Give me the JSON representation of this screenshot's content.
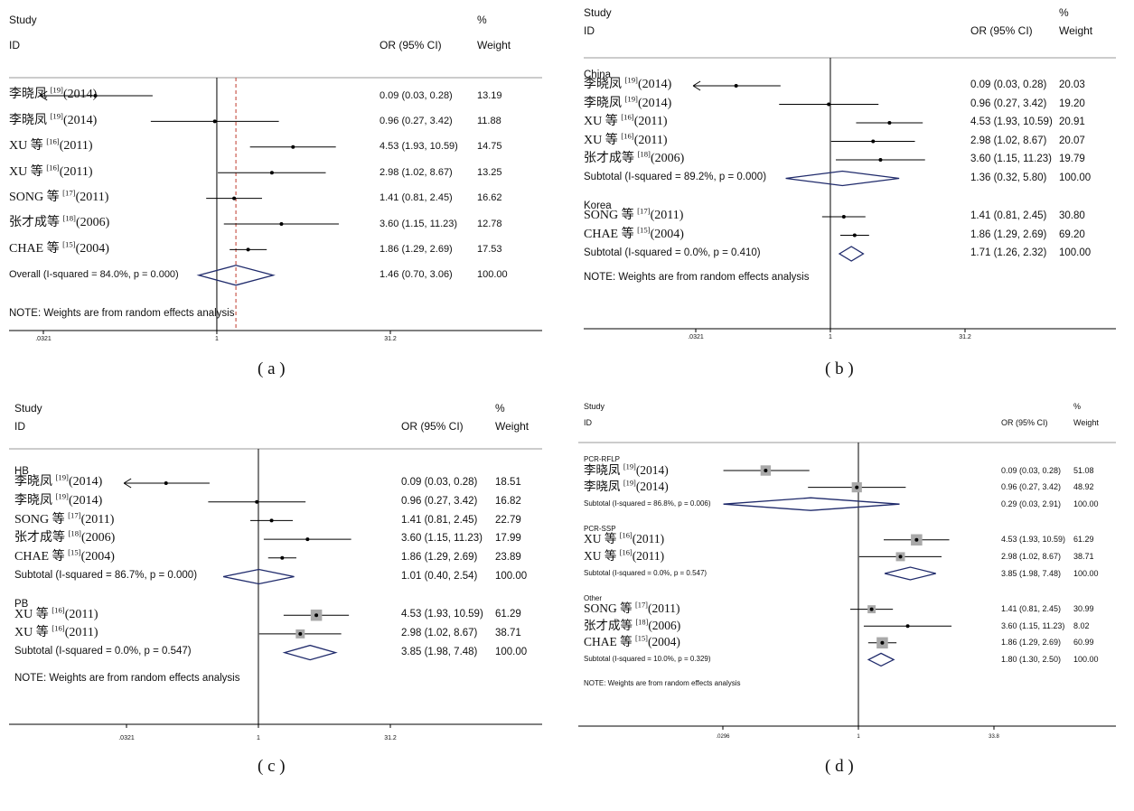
{
  "chart_data": [
    {
      "type": "forest",
      "panel_label": "( a )",
      "header": {
        "study": "Study",
        "id": "ID",
        "estimate": "OR (95% CI)",
        "pct": "%",
        "weight": "Weight"
      },
      "axis": {
        "scale": "log",
        "ticks": [
          ".0321",
          "1",
          "31.2"
        ]
      },
      "reference_line": 1,
      "overall_line": 1.46,
      "groups": [
        {
          "label": "",
          "studies": [
            {
              "name": "李晓凤",
              "ref": "[19]",
              "year": "(2014)",
              "or": 0.09,
              "lo": 0.03,
              "hi": 0.28,
              "ci_text": "0.09 (0.03, 0.28)",
              "weight": "13.19",
              "arrow_left": true
            },
            {
              "name": "李晓凤",
              "ref": "[19]",
              "year": "(2014)",
              "or": 0.96,
              "lo": 0.27,
              "hi": 3.42,
              "ci_text": "0.96 (0.27, 3.42)",
              "weight": "11.88"
            },
            {
              "name": "XU 等",
              "ref": "[16]",
              "year": "(2011)",
              "or": 4.53,
              "lo": 1.93,
              "hi": 10.59,
              "ci_text": "4.53 (1.93, 10.59)",
              "weight": "14.75"
            },
            {
              "name": "XU 等",
              "ref": "[16]",
              "year": "(2011)",
              "or": 2.98,
              "lo": 1.02,
              "hi": 8.67,
              "ci_text": "2.98 (1.02, 8.67)",
              "weight": "13.25"
            },
            {
              "name": "SONG 等",
              "ref": "[17]",
              "year": "(2011)",
              "or": 1.41,
              "lo": 0.81,
              "hi": 2.45,
              "ci_text": "1.41 (0.81, 2.45)",
              "weight": "16.62"
            },
            {
              "name": "张才成等",
              "ref": "[18]",
              "year": "(2006)",
              "or": 3.6,
              "lo": 1.15,
              "hi": 11.23,
              "ci_text": "3.60 (1.15, 11.23)",
              "weight": "12.78"
            },
            {
              "name": "CHAE 等",
              "ref": "[15]",
              "year": "(2004)",
              "or": 1.86,
              "lo": 1.29,
              "hi": 2.69,
              "ci_text": "1.86 (1.29, 2.69)",
              "weight": "17.53"
            }
          ]
        }
      ],
      "overall": {
        "label": "Overall  (I-squared = 84.0%, p = 0.000)",
        "or": 1.46,
        "lo": 0.7,
        "hi": 3.06,
        "ci_text": "1.46 (0.70, 3.06)",
        "weight": "100.00"
      },
      "note": "NOTE: Weights are from random effects analysis"
    },
    {
      "type": "forest",
      "panel_label": "( b )",
      "header": {
        "study": "Study",
        "id": "ID",
        "estimate": "OR (95% CI)",
        "pct": "%",
        "weight": "Weight"
      },
      "axis": {
        "scale": "log",
        "ticks": [
          ".0321",
          "1",
          "31.2"
        ]
      },
      "reference_line": 1,
      "groups": [
        {
          "label": "China",
          "studies": [
            {
              "name": "李晓凤",
              "ref": "[19]",
              "year": "(2014)",
              "or": 0.09,
              "lo": 0.03,
              "hi": 0.28,
              "ci_text": "0.09 (0.03, 0.28)",
              "weight": "20.03",
              "arrow_left": true
            },
            {
              "name": "李晓凤",
              "ref": "[19]",
              "year": "(2014)",
              "or": 0.96,
              "lo": 0.27,
              "hi": 3.42,
              "ci_text": "0.96 (0.27, 3.42)",
              "weight": "19.20"
            },
            {
              "name": "XU 等",
              "ref": "[16]",
              "year": "(2011)",
              "or": 4.53,
              "lo": 1.93,
              "hi": 10.59,
              "ci_text": "4.53 (1.93, 10.59)",
              "weight": "20.91"
            },
            {
              "name": "XU 等",
              "ref": "[16]",
              "year": "(2011)",
              "or": 2.98,
              "lo": 1.02,
              "hi": 8.67,
              "ci_text": "2.98 (1.02, 8.67)",
              "weight": "20.07"
            },
            {
              "name": "张才成等",
              "ref": "[18]",
              "year": "(2006)",
              "or": 3.6,
              "lo": 1.15,
              "hi": 11.23,
              "ci_text": "3.60 (1.15, 11.23)",
              "weight": "19.79"
            }
          ],
          "subtotal": {
            "label": "Subtotal  (I-squared = 89.2%, p = 0.000)",
            "or": 1.36,
            "lo": 0.32,
            "hi": 5.8,
            "ci_text": "1.36 (0.32, 5.80)",
            "weight": "100.00"
          }
        },
        {
          "label": "Korea",
          "studies": [
            {
              "name": "SONG 等",
              "ref": "[17]",
              "year": "(2011)",
              "or": 1.41,
              "lo": 0.81,
              "hi": 2.45,
              "ci_text": "1.41 (0.81, 2.45)",
              "weight": "30.80"
            },
            {
              "name": "CHAE 等",
              "ref": "[15]",
              "year": "(2004)",
              "or": 1.86,
              "lo": 1.29,
              "hi": 2.69,
              "ci_text": "1.86 (1.29, 2.69)",
              "weight": "69.20"
            }
          ],
          "subtotal": {
            "label": "Subtotal  (I-squared = 0.0%, p = 0.410)",
            "or": 1.71,
            "lo": 1.26,
            "hi": 2.32,
            "ci_text": "1.71 (1.26, 2.32)",
            "weight": "100.00"
          }
        }
      ],
      "note": "NOTE: Weights are from random effects analysis"
    },
    {
      "type": "forest",
      "panel_label": "( c )",
      "header": {
        "study": "Study",
        "id": "ID",
        "estimate": "OR (95% CI)",
        "pct": "%",
        "weight": "Weight"
      },
      "axis": {
        "scale": "log",
        "ticks": [
          ".0321",
          "1",
          "31.2"
        ]
      },
      "reference_line": 1,
      "groups": [
        {
          "label": "HB",
          "studies": [
            {
              "name": "李晓凤",
              "ref": "[19]",
              "year": "(2014)",
              "or": 0.09,
              "lo": 0.03,
              "hi": 0.28,
              "ci_text": "0.09 (0.03, 0.28)",
              "weight": "18.51",
              "arrow_left": true
            },
            {
              "name": "李晓凤",
              "ref": "[19]",
              "year": "(2014)",
              "or": 0.96,
              "lo": 0.27,
              "hi": 3.42,
              "ci_text": "0.96 (0.27, 3.42)",
              "weight": "16.82"
            },
            {
              "name": "SONG 等",
              "ref": "[17]",
              "year": "(2011)",
              "or": 1.41,
              "lo": 0.81,
              "hi": 2.45,
              "ci_text": "1.41 (0.81, 2.45)",
              "weight": "22.79"
            },
            {
              "name": "张才成等",
              "ref": "[18]",
              "year": "(2006)",
              "or": 3.6,
              "lo": 1.15,
              "hi": 11.23,
              "ci_text": "3.60 (1.15, 11.23)",
              "weight": "17.99"
            },
            {
              "name": "CHAE 等",
              "ref": "[15]",
              "year": "(2004)",
              "or": 1.86,
              "lo": 1.29,
              "hi": 2.69,
              "ci_text": "1.86 (1.29, 2.69)",
              "weight": "23.89"
            }
          ],
          "subtotal": {
            "label": "Subtotal  (I-squared = 86.7%, p = 0.000)",
            "or": 1.01,
            "lo": 0.4,
            "hi": 2.54,
            "ci_text": "1.01 (0.40, 2.54)",
            "weight": "100.00"
          }
        },
        {
          "label": "PB",
          "studies": [
            {
              "name": "XU 等",
              "ref": "[16]",
              "year": "(2011)",
              "or": 4.53,
              "lo": 1.93,
              "hi": 10.59,
              "ci_text": "4.53 (1.93, 10.59)",
              "weight": "61.29",
              "box": true
            },
            {
              "name": "XU 等",
              "ref": "[16]",
              "year": "(2011)",
              "or": 2.98,
              "lo": 1.02,
              "hi": 8.67,
              "ci_text": "2.98 (1.02, 8.67)",
              "weight": "38.71",
              "box": true
            }
          ],
          "subtotal": {
            "label": "Subtotal  (I-squared = 0.0%, p = 0.547)",
            "or": 3.85,
            "lo": 1.98,
            "hi": 7.48,
            "ci_text": "3.85 (1.98, 7.48)",
            "weight": "100.00"
          }
        }
      ],
      "note": "NOTE: Weights are from random effects analysis"
    },
    {
      "type": "forest",
      "panel_label": "( d )",
      "header": {
        "study": "Study",
        "id": "ID",
        "estimate": "OR (95% CI)",
        "pct": "%",
        "weight": "Weight"
      },
      "axis": {
        "scale": "log",
        "ticks": [
          ".0296",
          "1",
          "33.8"
        ]
      },
      "reference_line": 1,
      "groups": [
        {
          "label": "PCR-RFLP",
          "studies": [
            {
              "name": "李晓凤",
              "ref": "[19]",
              "year": "(2014)",
              "or": 0.09,
              "lo": 0.03,
              "hi": 0.28,
              "ci_text": "0.09 (0.03, 0.28)",
              "weight": "51.08",
              "box": true
            },
            {
              "name": "李晓凤",
              "ref": "[19]",
              "year": "(2014)",
              "or": 0.96,
              "lo": 0.27,
              "hi": 3.42,
              "ci_text": "0.96 (0.27, 3.42)",
              "weight": "48.92",
              "box": true
            }
          ],
          "subtotal": {
            "label": "Subtotal  (I-squared = 86.8%, p = 0.006)",
            "or": 0.29,
            "lo": 0.03,
            "hi": 2.91,
            "ci_text": "0.29 (0.03, 2.91)",
            "weight": "100.00"
          }
        },
        {
          "label": "PCR-SSP",
          "studies": [
            {
              "name": "XU 等",
              "ref": "[16]",
              "year": "(2011)",
              "or": 4.53,
              "lo": 1.93,
              "hi": 10.59,
              "ci_text": "4.53 (1.93, 10.59)",
              "weight": "61.29",
              "box": true
            },
            {
              "name": "XU 等",
              "ref": "[16]",
              "year": "(2011)",
              "or": 2.98,
              "lo": 1.02,
              "hi": 8.67,
              "ci_text": "2.98 (1.02, 8.67)",
              "weight": "38.71",
              "box": true
            }
          ],
          "subtotal": {
            "label": "Subtotal  (I-squared = 0.0%, p = 0.547)",
            "or": 3.85,
            "lo": 1.98,
            "hi": 7.48,
            "ci_text": "3.85 (1.98, 7.48)",
            "weight": "100.00"
          }
        },
        {
          "label": "Other",
          "studies": [
            {
              "name": "SONG 等",
              "ref": "[17]",
              "year": "(2011)",
              "or": 1.41,
              "lo": 0.81,
              "hi": 2.45,
              "ci_text": "1.41 (0.81, 2.45)",
              "weight": "30.99",
              "box": true
            },
            {
              "name": "张才成等",
              "ref": "[18]",
              "year": "(2006)",
              "or": 3.6,
              "lo": 1.15,
              "hi": 11.23,
              "ci_text": "3.60 (1.15, 11.23)",
              "weight": "8.02"
            },
            {
              "name": "CHAE 等",
              "ref": "[15]",
              "year": "(2004)",
              "or": 1.86,
              "lo": 1.29,
              "hi": 2.69,
              "ci_text": "1.86 (1.29, 2.69)",
              "weight": "60.99",
              "box": true
            }
          ],
          "subtotal": {
            "label": "Subtotal  (I-squared = 10.0%, p = 0.329)",
            "or": 1.8,
            "lo": 1.3,
            "hi": 2.5,
            "ci_text": "1.80 (1.30, 2.50)",
            "weight": "100.00"
          }
        }
      ],
      "note": "NOTE: Weights are from random effects analysis"
    }
  ],
  "colors": {
    "diamond": "#1f2a6b",
    "box": "#a9a9a9",
    "line": "#000000",
    "overall_dash": "#c0392b",
    "rule": "#999999"
  }
}
